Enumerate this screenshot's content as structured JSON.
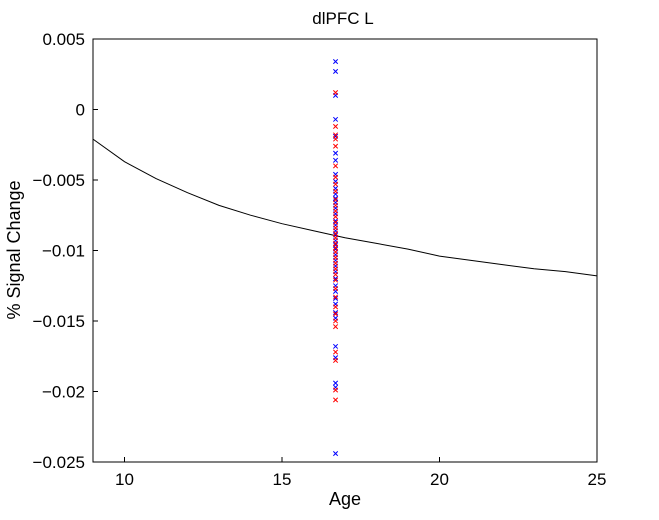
{
  "chart_data": {
    "type": "scatter",
    "title": "dlPFC L",
    "xlabel": "Age",
    "ylabel": "% Signal Change",
    "xlim": [
      9,
      25
    ],
    "ylim": [
      -0.025,
      0.005
    ],
    "xticks": [
      10,
      15,
      20,
      25
    ],
    "xtick_labels": [
      "10",
      "15",
      "20",
      "25"
    ],
    "yticks": [
      0.005,
      0,
      -0.005,
      -0.01,
      -0.015,
      -0.02,
      -0.025
    ],
    "ytick_labels": [
      "0.005",
      "0",
      "−0.005",
      "−0.01",
      "−0.015",
      "−0.02",
      "−0.025"
    ],
    "grid": false,
    "legend": "none",
    "series": [
      {
        "kind": "line",
        "color": "#000000",
        "x": [
          9,
          10,
          11,
          12,
          13,
          14,
          15,
          16,
          17,
          18,
          19,
          20,
          21,
          22,
          23,
          24,
          25
        ],
        "y": [
          -0.0021,
          -0.0037,
          -0.0049,
          -0.0059,
          -0.0068,
          -0.0075,
          -0.0081,
          -0.0086,
          -0.0091,
          -0.0095,
          -0.0099,
          -0.0104,
          -0.0107,
          -0.011,
          -0.0113,
          -0.0115,
          -0.0118
        ]
      },
      {
        "kind": "scatter",
        "marker": "x",
        "color": "#0000ff",
        "x": [
          16.7,
          16.7,
          16.7,
          16.7,
          16.7,
          16.7,
          16.7,
          16.7,
          16.7,
          16.7,
          16.7,
          16.7,
          16.7,
          16.7,
          16.7,
          16.7,
          16.7,
          16.7,
          16.7,
          16.7,
          16.7,
          16.7,
          16.7,
          16.7,
          16.7,
          16.7,
          16.7,
          16.7,
          16.7,
          16.7,
          16.7,
          16.7,
          16.7,
          16.7,
          16.7,
          16.7,
          16.7,
          16.7
        ],
        "y": [
          0.0034,
          0.0027,
          0.001,
          -0.0007,
          -0.0019,
          -0.0031,
          -0.0036,
          -0.0046,
          -0.0051,
          -0.0056,
          -0.006,
          -0.0063,
          -0.0066,
          -0.007,
          -0.0074,
          -0.0079,
          -0.0082,
          -0.0086,
          -0.0089,
          -0.0093,
          -0.0096,
          -0.0099,
          -0.0103,
          -0.0107,
          -0.0111,
          -0.0115,
          -0.012,
          -0.0125,
          -0.0129,
          -0.0134,
          -0.0138,
          -0.0144,
          -0.0148,
          -0.0168,
          -0.0176,
          -0.0194,
          -0.0197,
          -0.0244
        ]
      },
      {
        "kind": "scatter",
        "marker": "x",
        "color": "#ff0000",
        "x": [
          16.7,
          16.7,
          16.7,
          16.7,
          16.7,
          16.7,
          16.7,
          16.7,
          16.7,
          16.7,
          16.7,
          16.7,
          16.7,
          16.7,
          16.7,
          16.7,
          16.7,
          16.7,
          16.7,
          16.7,
          16.7,
          16.7,
          16.7,
          16.7,
          16.7,
          16.7,
          16.7,
          16.7,
          16.7,
          16.7,
          16.7,
          16.7,
          16.7,
          16.7,
          16.7
        ],
        "y": [
          0.0012,
          -0.0012,
          -0.0018,
          -0.0021,
          -0.0026,
          -0.004,
          -0.0048,
          -0.0053,
          -0.0058,
          -0.0064,
          -0.0068,
          -0.0072,
          -0.0076,
          -0.008,
          -0.0084,
          -0.0088,
          -0.0091,
          -0.0095,
          -0.0098,
          -0.0101,
          -0.0105,
          -0.0109,
          -0.0113,
          -0.0117,
          -0.0121,
          -0.0127,
          -0.0133,
          -0.014,
          -0.0145,
          -0.015,
          -0.0154,
          -0.0172,
          -0.0178,
          -0.0199,
          -0.0206
        ]
      }
    ]
  }
}
